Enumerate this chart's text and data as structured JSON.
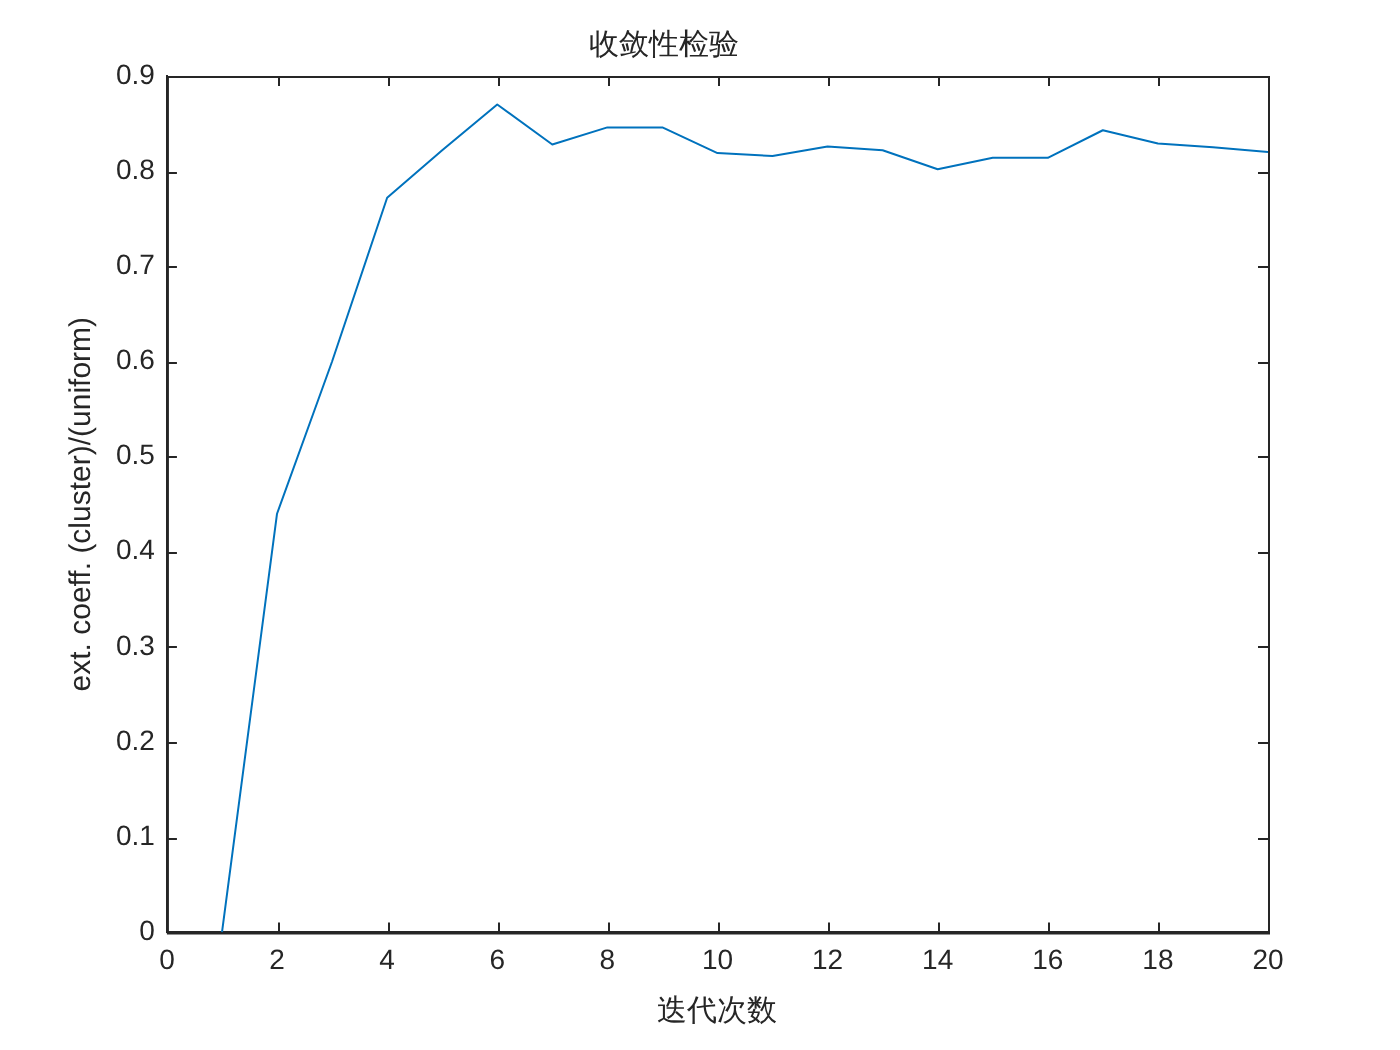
{
  "chart_data": {
    "type": "line",
    "title": "收敛性检验",
    "xlabel": "迭代次数",
    "ylabel": "ext. coeff. (cluster)/(uniform)",
    "x": [
      1,
      2,
      3,
      4,
      5,
      6,
      7,
      8,
      9,
      10,
      11,
      12,
      13,
      14,
      15,
      16,
      17,
      18,
      19,
      20
    ],
    "series": [
      {
        "color": "#0072bd",
        "values": [
          0,
          0.44,
          0.6,
          0.772,
          0.822,
          0.87,
          0.828,
          0.846,
          0.846,
          0.819,
          0.816,
          0.826,
          0.822,
          0.802,
          0.814,
          0.814,
          0.843,
          0.829,
          0.825,
          0.82
        ]
      }
    ],
    "xlim": [
      0,
      20
    ],
    "xticks": [
      0,
      2,
      4,
      6,
      8,
      10,
      12,
      14,
      16,
      18,
      20
    ],
    "ylim": [
      0,
      0.9
    ],
    "yticks": [
      0,
      0.1,
      0.2,
      0.3,
      0.4,
      0.5,
      0.6,
      0.7,
      0.8,
      0.9
    ],
    "grid": false,
    "legend": false,
    "marker": "none",
    "line_style": "solid"
  }
}
